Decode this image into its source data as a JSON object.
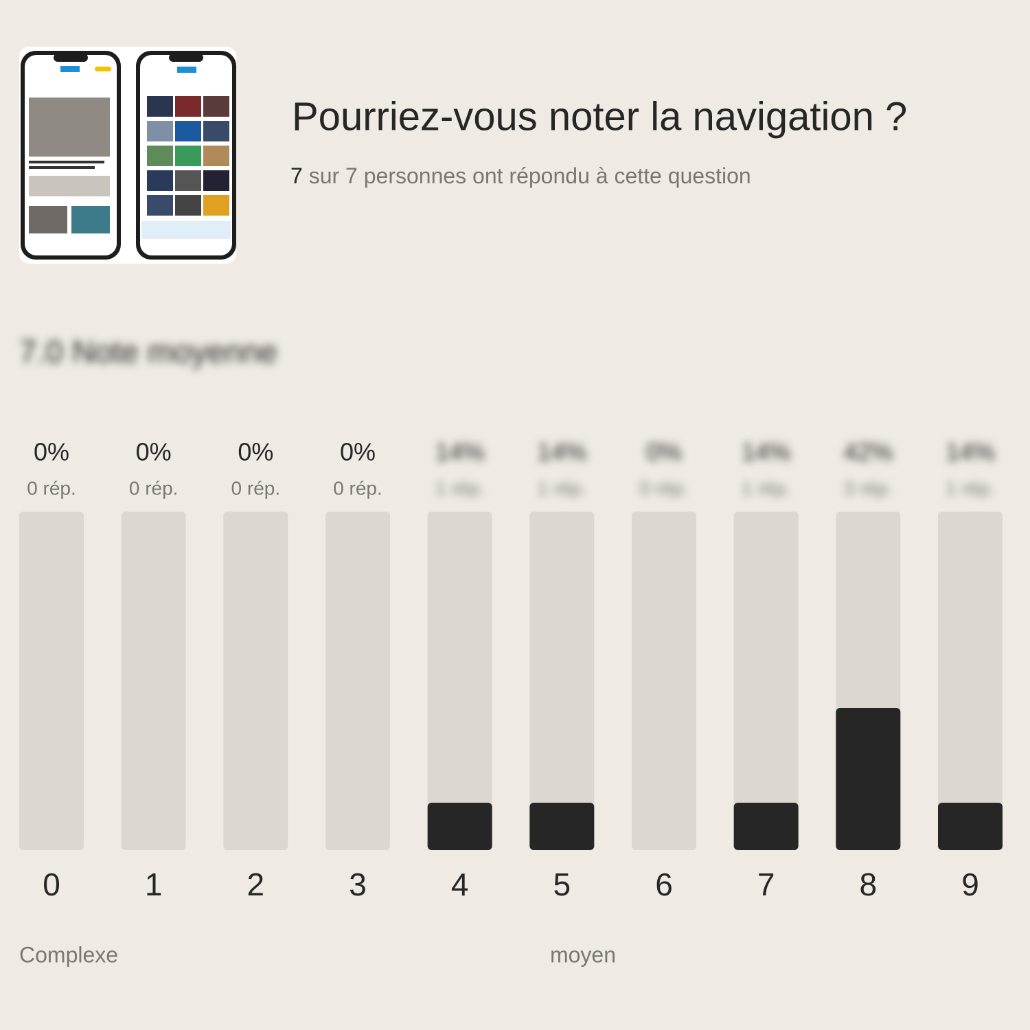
{
  "chart_data": {
    "type": "bar",
    "title": "Pourriez-vous noter la navigation ?",
    "respondents": "7",
    "subtitle": "sur 7 personnes ont répondu à cette question",
    "average_label": "7.0 Note moyenne",
    "categories": [
      "0",
      "1",
      "2",
      "3",
      "4",
      "5",
      "6",
      "7",
      "8",
      "9"
    ],
    "values": [
      0,
      0,
      0,
      0,
      14,
      14,
      0,
      14,
      42,
      14
    ],
    "value_labels": [
      "0%",
      "0%",
      "0%",
      "0%",
      "14%",
      "14%",
      "0%",
      "14%",
      "42%",
      "14%"
    ],
    "response_labels": [
      "0 rép.",
      "0 rép.",
      "0 rép.",
      "0 rép.",
      "1 rép.",
      "1 rép.",
      "0 rép.",
      "1 rép.",
      "3 rép.",
      "1 rép."
    ],
    "low_label": "Complexe",
    "mid_label": "moyen",
    "color": "#262626",
    "ylim": [
      0,
      100
    ]
  }
}
